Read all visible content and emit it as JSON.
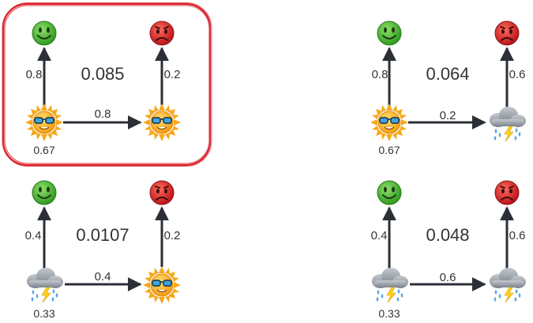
{
  "panels": [
    {
      "title_value": "0.085",
      "initial_prob": "0.67",
      "emit_left": "0.8",
      "emit_right": "0.2",
      "transition": "0.8",
      "left_state": "sunny",
      "right_state": "sunny",
      "highlighted": true
    },
    {
      "title_value": "0.064",
      "initial_prob": "0.67",
      "emit_left": "0.8",
      "emit_right": "0.6",
      "transition": "0.2",
      "left_state": "sunny",
      "right_state": "stormy",
      "highlighted": false
    },
    {
      "title_value": "0.0107",
      "initial_prob": "0.33",
      "emit_left": "0.4",
      "emit_right": "0.2",
      "transition": "0.4",
      "left_state": "stormy",
      "right_state": "sunny",
      "highlighted": false
    },
    {
      "title_value": "0.048",
      "initial_prob": "0.33",
      "emit_left": "0.4",
      "emit_right": "0.6",
      "transition": "0.6",
      "left_state": "stormy",
      "right_state": "stormy",
      "highlighted": false
    }
  ],
  "icons": {
    "happy": "happy-face-icon",
    "sad": "sad-face-icon",
    "sunny": "sun-with-sunglasses-icon",
    "stormy": "storm-cloud-icon"
  },
  "colors": {
    "happy": "#3fae2a",
    "sad": "#d42020",
    "sun": "#f6b61b",
    "cloud": "#9aa0a8",
    "highlight": "#d9232e",
    "arrow": "#2b2f36"
  }
}
